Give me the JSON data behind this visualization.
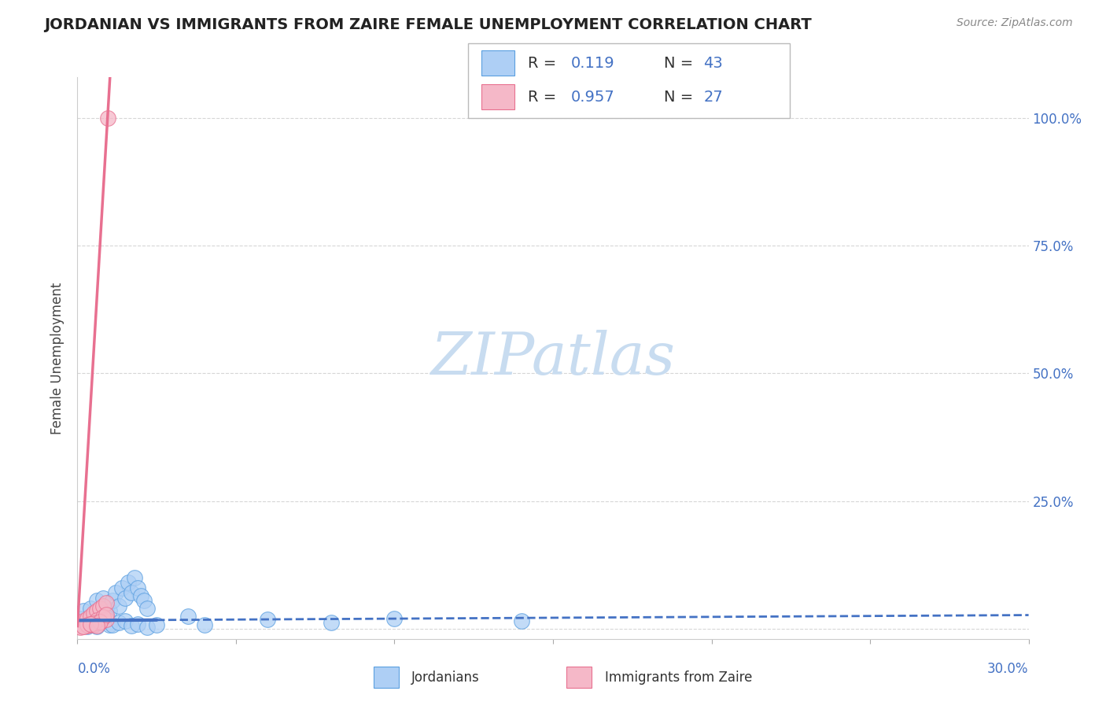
{
  "title": "JORDANIAN VS IMMIGRANTS FROM ZAIRE FEMALE UNEMPLOYMENT CORRELATION CHART",
  "source": "Source: ZipAtlas.com",
  "ylabel": "Female Unemployment",
  "xlim": [
    0.0,
    0.3
  ],
  "ylim": [
    -0.02,
    1.08
  ],
  "y_ticks": [
    0.0,
    0.25,
    0.5,
    0.75,
    1.0
  ],
  "y_tick_labels_right": [
    "",
    "25.0%",
    "50.0%",
    "75.0%",
    "100.0%"
  ],
  "R_jordanians": 0.119,
  "N_jordanians": 43,
  "R_zaire": 0.957,
  "N_zaire": 27,
  "blue_fill": "#AECFF5",
  "blue_edge": "#5A9FE0",
  "blue_line": "#4472C4",
  "pink_fill": "#F5B8C8",
  "pink_edge": "#E87090",
  "pink_line": "#E87090",
  "grid_color": "#CCCCCC",
  "watermark_color": "#C8DCF0",
  "bg_color": "#FFFFFF",
  "jord_x": [
    0.001,
    0.002,
    0.003,
    0.004,
    0.005,
    0.006,
    0.007,
    0.008,
    0.009,
    0.01,
    0.011,
    0.012,
    0.013,
    0.014,
    0.015,
    0.016,
    0.017,
    0.018,
    0.019,
    0.02,
    0.021,
    0.022,
    0.003,
    0.005,
    0.008,
    0.01,
    0.004,
    0.007,
    0.009,
    0.006,
    0.011,
    0.013,
    0.015,
    0.017,
    0.019,
    0.022,
    0.025,
    0.14,
    0.1,
    0.08,
    0.06,
    0.04,
    0.035
  ],
  "jord_y": [
    0.02,
    0.035,
    0.015,
    0.04,
    0.025,
    0.055,
    0.03,
    0.06,
    0.04,
    0.035,
    0.055,
    0.07,
    0.045,
    0.08,
    0.06,
    0.09,
    0.07,
    0.1,
    0.08,
    0.065,
    0.055,
    0.04,
    0.005,
    0.01,
    0.015,
    0.008,
    0.012,
    0.018,
    0.022,
    0.005,
    0.008,
    0.012,
    0.015,
    0.006,
    0.009,
    0.003,
    0.007,
    0.015,
    0.02,
    0.012,
    0.018,
    0.008,
    0.025
  ],
  "zaire_x": [
    0.0,
    0.001,
    0.002,
    0.003,
    0.004,
    0.005,
    0.006,
    0.007,
    0.008,
    0.009,
    0.003,
    0.005,
    0.007,
    0.009,
    0.002,
    0.004,
    0.006,
    0.008,
    0.001,
    0.003,
    0.005,
    0.007,
    0.009,
    0.002,
    0.004,
    0.006,
    0.0095
  ],
  "zaire_y": [
    0.005,
    0.01,
    0.015,
    0.02,
    0.025,
    0.03,
    0.035,
    0.04,
    0.045,
    0.05,
    0.006,
    0.008,
    0.012,
    0.018,
    0.004,
    0.009,
    0.016,
    0.022,
    0.003,
    0.007,
    0.011,
    0.014,
    0.028,
    0.004,
    0.009,
    0.006,
    1.0
  ]
}
